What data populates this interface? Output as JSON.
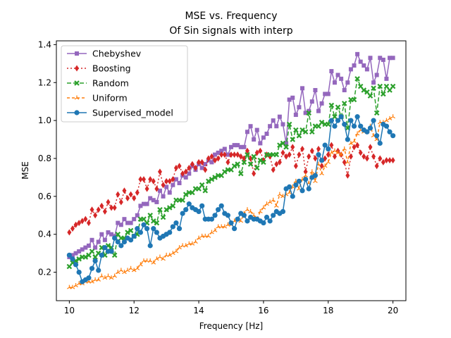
{
  "chart_data": {
    "type": "line",
    "title": "MSE vs. Frequency",
    "subtitle": "Of Sin signals with interp",
    "xlabel": "Frequency [Hz]",
    "ylabel": "MSE",
    "xlim": [
      9.6,
      20.4
    ],
    "ylim": [
      0.05,
      1.42
    ],
    "xticks": [
      10,
      12,
      14,
      16,
      18,
      20
    ],
    "yticks": [
      0.2,
      0.4,
      0.6,
      0.8,
      1.0,
      1.2,
      1.4
    ],
    "xtick_labels": [
      "10",
      "12",
      "14",
      "16",
      "18",
      "20"
    ],
    "ytick_labels": [
      "0.2",
      "0.4",
      "0.6",
      "0.8",
      "1.0",
      "1.2",
      "1.4"
    ],
    "grid": false,
    "legend_position": "top-left",
    "x": [
      10.0,
      10.1,
      10.2,
      10.3,
      10.4,
      10.5,
      10.6,
      10.7,
      10.8,
      10.9,
      11.0,
      11.1,
      11.2,
      11.3,
      11.4,
      11.5,
      11.6,
      11.7,
      11.8,
      11.9,
      12.0,
      12.1,
      12.2,
      12.3,
      12.4,
      12.5,
      12.6,
      12.7,
      12.8,
      12.9,
      13.0,
      13.1,
      13.2,
      13.3,
      13.4,
      13.5,
      13.6,
      13.7,
      13.8,
      13.9,
      14.0,
      14.1,
      14.2,
      14.3,
      14.4,
      14.5,
      14.6,
      14.7,
      14.8,
      14.9,
      15.0,
      15.1,
      15.2,
      15.3,
      15.4,
      15.5,
      15.6,
      15.7,
      15.8,
      15.9,
      16.0,
      16.1,
      16.2,
      16.3,
      16.4,
      16.5,
      16.6,
      16.7,
      16.8,
      16.9,
      17.0,
      17.1,
      17.2,
      17.3,
      17.4,
      17.5,
      17.6,
      17.7,
      17.8,
      17.9,
      18.0,
      18.1,
      18.2,
      18.3,
      18.4,
      18.5,
      18.6,
      18.7,
      18.8,
      18.9,
      19.0,
      19.1,
      19.2,
      19.3,
      19.4,
      19.5,
      19.6,
      19.7,
      19.8,
      19.9,
      20.0
    ],
    "series": [
      {
        "name": "Chebyshev",
        "color": "#9467bd",
        "marker": "square",
        "dash": "",
        "values": [
          0.28,
          0.29,
          0.3,
          0.31,
          0.32,
          0.33,
          0.34,
          0.37,
          0.33,
          0.36,
          0.4,
          0.37,
          0.41,
          0.4,
          0.39,
          0.46,
          0.45,
          0.48,
          0.46,
          0.46,
          0.48,
          0.5,
          0.55,
          0.56,
          0.56,
          0.59,
          0.58,
          0.57,
          0.63,
          0.6,
          0.65,
          0.62,
          0.66,
          0.69,
          0.67,
          0.71,
          0.7,
          0.72,
          0.76,
          0.74,
          0.77,
          0.75,
          0.77,
          0.79,
          0.78,
          0.82,
          0.83,
          0.84,
          0.85,
          0.82,
          0.86,
          0.87,
          0.87,
          0.86,
          0.86,
          0.94,
          0.97,
          0.9,
          0.95,
          0.88,
          0.91,
          0.93,
          0.97,
          1.0,
          0.97,
          1.02,
          0.98,
          0.88,
          1.11,
          1.12,
          1.03,
          1.07,
          1.17,
          1.04,
          1.05,
          1.1,
          1.16,
          1.05,
          1.09,
          1.14,
          1.14,
          1.26,
          1.2,
          1.24,
          1.22,
          1.16,
          1.2,
          1.27,
          1.29,
          1.35,
          1.31,
          1.29,
          1.27,
          1.33,
          1.2,
          1.24,
          1.33,
          1.32,
          1.22,
          1.33,
          1.33
        ]
      },
      {
        "name": "Boosting",
        "color": "#d62728",
        "marker": "diamond",
        "dash": "2,3",
        "values": [
          0.41,
          0.43,
          0.45,
          0.46,
          0.47,
          0.48,
          0.46,
          0.53,
          0.5,
          0.53,
          0.55,
          0.52,
          0.57,
          0.54,
          0.54,
          0.61,
          0.57,
          0.63,
          0.59,
          0.61,
          0.59,
          0.62,
          0.69,
          0.69,
          0.64,
          0.69,
          0.68,
          0.64,
          0.73,
          0.66,
          0.68,
          0.68,
          0.69,
          0.75,
          0.76,
          0.72,
          0.73,
          0.75,
          0.77,
          0.75,
          0.78,
          0.78,
          0.74,
          0.8,
          0.81,
          0.79,
          0.8,
          0.82,
          0.82,
          0.78,
          0.82,
          0.82,
          0.82,
          0.81,
          0.8,
          0.84,
          0.8,
          0.72,
          0.83,
          0.84,
          0.79,
          0.82,
          0.81,
          0.74,
          0.77,
          0.78,
          0.83,
          0.81,
          0.82,
          0.86,
          0.76,
          0.82,
          0.85,
          0.73,
          0.81,
          0.84,
          0.8,
          0.85,
          0.76,
          0.8,
          0.82,
          0.87,
          0.81,
          0.84,
          0.82,
          0.78,
          0.71,
          0.81,
          0.86,
          0.87,
          0.83,
          0.81,
          0.8,
          0.86,
          0.81,
          0.76,
          0.8,
          0.78,
          0.79,
          0.79,
          0.79
        ]
      },
      {
        "name": "Random",
        "color": "#2ca02c",
        "marker": "x",
        "dash": "6,3",
        "values": [
          0.23,
          0.25,
          0.26,
          0.27,
          0.28,
          0.28,
          0.29,
          0.31,
          0.28,
          0.3,
          0.33,
          0.29,
          0.34,
          0.33,
          0.29,
          0.4,
          0.38,
          0.38,
          0.41,
          0.42,
          0.39,
          0.4,
          0.48,
          0.48,
          0.46,
          0.5,
          0.47,
          0.46,
          0.53,
          0.49,
          0.53,
          0.54,
          0.55,
          0.58,
          0.58,
          0.58,
          0.61,
          0.62,
          0.62,
          0.64,
          0.64,
          0.66,
          0.63,
          0.68,
          0.69,
          0.7,
          0.71,
          0.71,
          0.73,
          0.74,
          0.74,
          0.76,
          0.77,
          0.72,
          0.78,
          0.82,
          0.77,
          0.81,
          0.75,
          0.79,
          0.78,
          0.82,
          0.82,
          0.82,
          0.82,
          0.87,
          0.88,
          0.86,
          0.98,
          0.9,
          0.95,
          0.92,
          0.95,
          0.94,
          1.04,
          0.94,
          0.97,
          0.97,
          0.99,
          0.98,
          0.98,
          1.08,
          1.02,
          1.07,
          1.02,
          1.09,
          0.96,
          1.11,
          1.11,
          1.22,
          1.18,
          1.16,
          1.15,
          1.13,
          1.17,
          1.04,
          1.18,
          1.14,
          1.18,
          1.16,
          1.18
        ]
      },
      {
        "name": "Uniform",
        "color": "#ff7f0e",
        "marker": "tri",
        "dash": "4,3",
        "values": [
          0.12,
          0.12,
          0.13,
          0.14,
          0.14,
          0.15,
          0.15,
          0.15,
          0.16,
          0.16,
          0.18,
          0.17,
          0.18,
          0.17,
          0.18,
          0.2,
          0.21,
          0.2,
          0.21,
          0.22,
          0.21,
          0.22,
          0.24,
          0.26,
          0.26,
          0.26,
          0.25,
          0.27,
          0.28,
          0.27,
          0.29,
          0.29,
          0.3,
          0.31,
          0.33,
          0.34,
          0.34,
          0.35,
          0.35,
          0.36,
          0.38,
          0.39,
          0.39,
          0.39,
          0.41,
          0.42,
          0.44,
          0.44,
          0.44,
          0.45,
          0.45,
          0.47,
          0.48,
          0.47,
          0.51,
          0.53,
          0.52,
          0.5,
          0.48,
          0.52,
          0.54,
          0.56,
          0.57,
          0.58,
          0.55,
          0.61,
          0.6,
          0.61,
          0.62,
          0.65,
          0.68,
          0.64,
          0.69,
          0.71,
          0.67,
          0.73,
          0.68,
          0.77,
          0.72,
          0.76,
          0.78,
          0.83,
          0.84,
          0.83,
          0.82,
          0.85,
          0.78,
          0.88,
          0.89,
          0.93,
          0.95,
          0.94,
          0.94,
          0.97,
          0.92,
          0.9,
          0.99,
          0.99,
          1.0,
          1.01,
          1.02
        ]
      },
      {
        "name": "Supervised_model",
        "color": "#1f77b4",
        "marker": "circle",
        "dash": "",
        "values": [
          0.29,
          0.27,
          0.24,
          0.2,
          0.15,
          0.16,
          0.17,
          0.22,
          0.26,
          0.21,
          0.29,
          0.33,
          0.31,
          0.31,
          0.38,
          0.36,
          0.34,
          0.36,
          0.38,
          0.37,
          0.39,
          0.43,
          0.41,
          0.45,
          0.43,
          0.34,
          0.43,
          0.41,
          0.38,
          0.39,
          0.4,
          0.41,
          0.44,
          0.46,
          0.43,
          0.51,
          0.53,
          0.56,
          0.54,
          0.53,
          0.52,
          0.55,
          0.48,
          0.48,
          0.48,
          0.5,
          0.53,
          0.55,
          0.51,
          0.5,
          0.46,
          0.43,
          0.48,
          0.51,
          0.5,
          0.47,
          0.49,
          0.48,
          0.48,
          0.47,
          0.46,
          0.49,
          0.47,
          0.5,
          0.52,
          0.51,
          0.52,
          0.64,
          0.65,
          0.6,
          0.66,
          0.68,
          0.63,
          0.69,
          0.64,
          0.7,
          0.71,
          0.82,
          0.79,
          0.87,
          0.85,
          1.0,
          0.97,
          1.0,
          1.02,
          0.98,
          0.9,
          1.0,
          0.97,
          1.02,
          0.97,
          0.95,
          0.94,
          0.96,
          1.0,
          0.92,
          0.88,
          0.98,
          0.97,
          0.94,
          0.92
        ]
      }
    ]
  }
}
